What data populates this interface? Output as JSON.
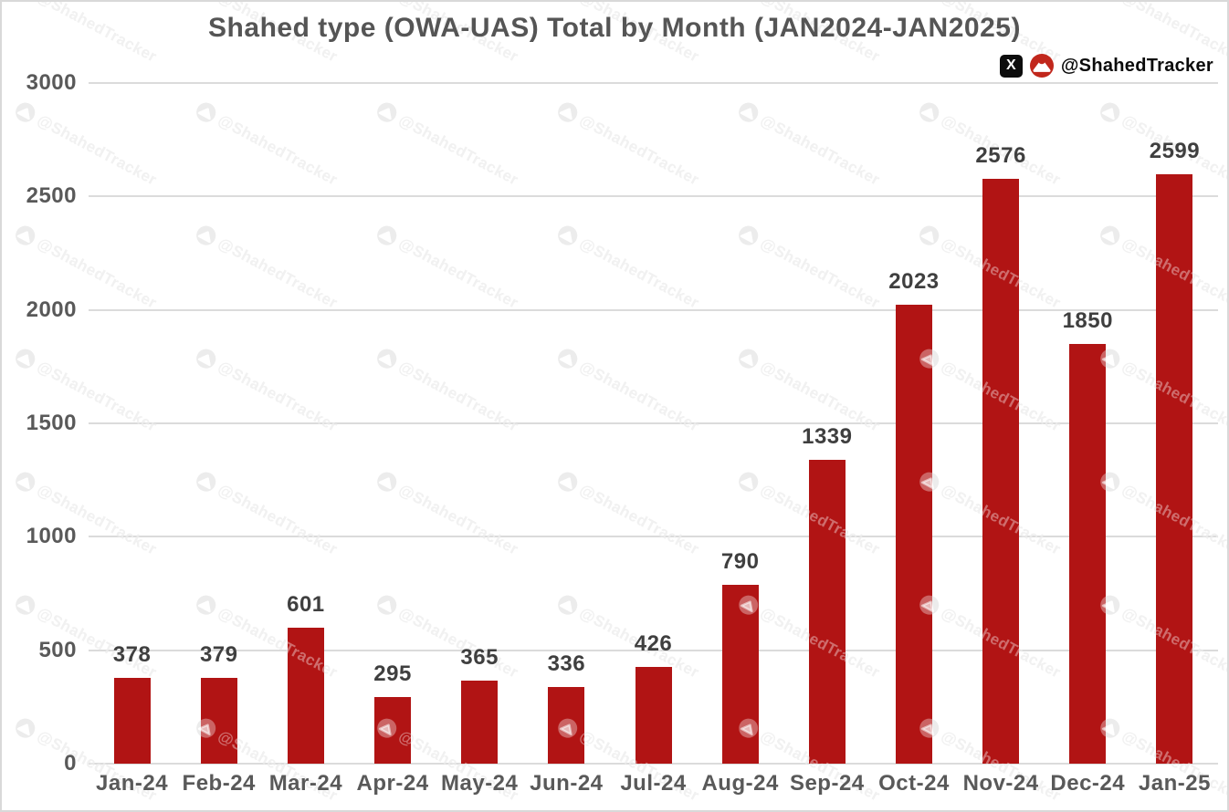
{
  "title": "Shahed type (OWA-UAS) Total by Month (JAN2024-JAN2025)",
  "branding": {
    "x_logo": "X",
    "handle": "@ShahedTracker"
  },
  "watermark": {
    "text": "@ShahedTracker"
  },
  "chart_data": {
    "type": "bar",
    "title": "Shahed type (OWA-UAS) Total by Month (JAN2024-JAN2025)",
    "categories": [
      "Jan-24",
      "Feb-24",
      "Mar-24",
      "Apr-24",
      "May-24",
      "Jun-24",
      "Jul-24",
      "Aug-24",
      "Sep-24",
      "Oct-24",
      "Nov-24",
      "Dec-24",
      "Jan-25"
    ],
    "values": [
      378,
      379,
      601,
      295,
      365,
      336,
      426,
      790,
      1339,
      2023,
      2576,
      1850,
      2599
    ],
    "xlabel": "",
    "ylabel": "",
    "ylim": [
      0,
      3000
    ],
    "yticks": [
      0,
      500,
      1000,
      1500,
      2000,
      2500,
      3000
    ],
    "grid": true,
    "legend": false,
    "value_labels": true
  },
  "colors": {
    "bar": "#B11414",
    "grid": "#DBDBDB",
    "axis_text": "#595959",
    "value_text": "#3F3F3F",
    "title_text": "#555555",
    "badge_red": "#C1271C",
    "watermark_gray": "#E9E9E9"
  }
}
